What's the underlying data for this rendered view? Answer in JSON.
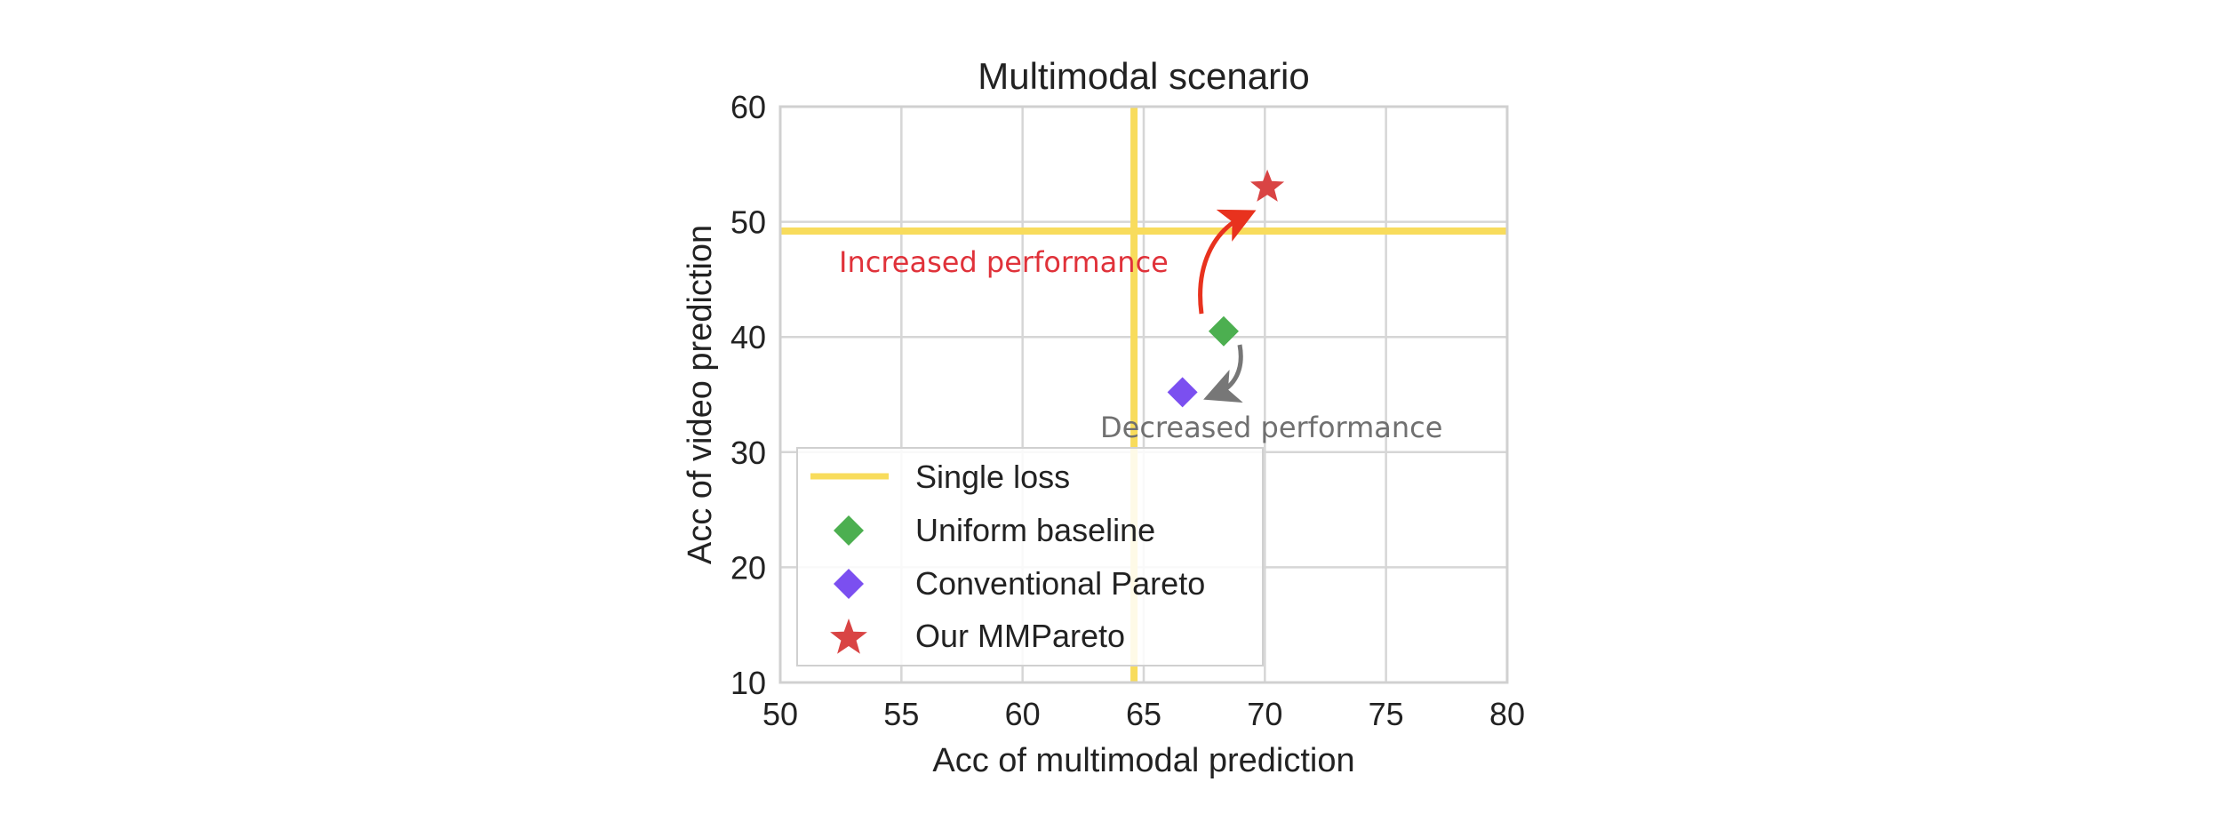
{
  "chart_data": {
    "type": "scatter",
    "title": "Multimodal scenario",
    "xlabel": "Acc of multimodal prediction",
    "ylabel": "Acc of video prediction",
    "xlim": [
      50,
      80
    ],
    "ylim": [
      10,
      60
    ],
    "xticks": [
      50,
      55,
      60,
      65,
      70,
      75,
      80
    ],
    "yticks": [
      10,
      20,
      30,
      40,
      50,
      60
    ],
    "grid": true,
    "legend_position": "bottom-left",
    "reference_lines": {
      "name": "Single loss",
      "x": 64.6,
      "y": 49.2,
      "color": "#f8dc5c"
    },
    "series": [
      {
        "name": "Uniform baseline",
        "marker": "diamond",
        "color": "#4caf50",
        "x": 68.3,
        "y": 40.5
      },
      {
        "name": "Conventional Pareto",
        "marker": "diamond",
        "color": "#7b4ff0",
        "x": 66.6,
        "y": 35.2
      },
      {
        "name": "Our MMPareto",
        "marker": "star",
        "color": "#d94444",
        "x": 70.1,
        "y": 53.0
      }
    ],
    "annotations": [
      {
        "text": "Increased performance",
        "color": "#e0323a"
      },
      {
        "text": "Decreased performance",
        "color": "#707070"
      }
    ],
    "legend": [
      "Single loss",
      "Uniform baseline",
      "Conventional Pareto",
      "Our MMPareto"
    ]
  }
}
